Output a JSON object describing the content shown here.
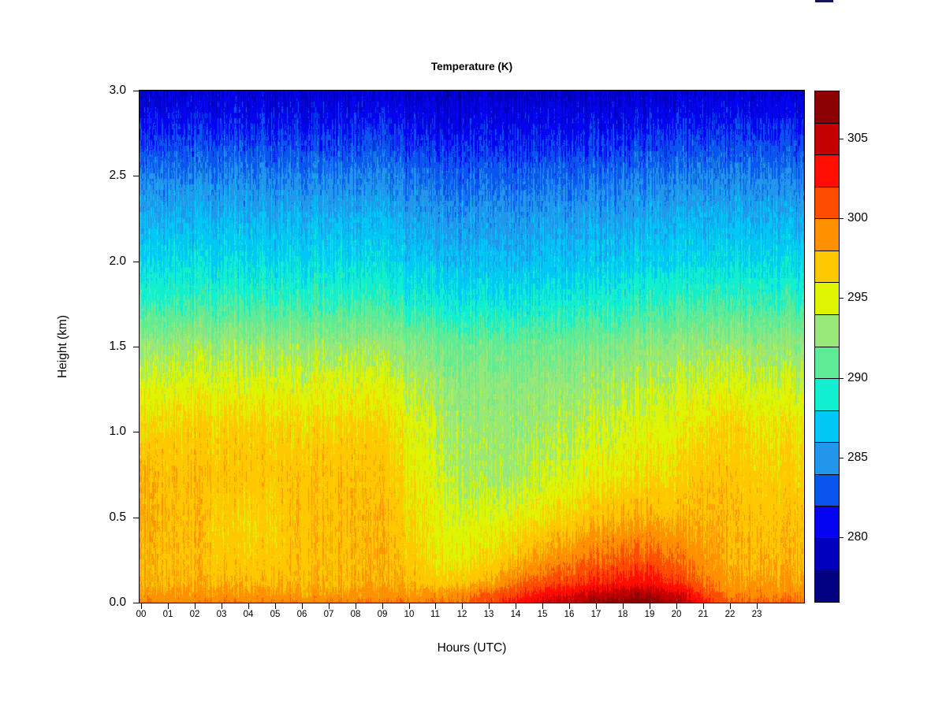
{
  "page": {
    "background": "#FFFFFF",
    "artifact_color": "#15155A"
  },
  "chart_data": {
    "type": "heatmap",
    "title": "Temperature (K)",
    "xlabel": "Hours (UTC)",
    "ylabel": "Height (km)",
    "x_tick_labels": [
      "00",
      "01",
      "02",
      "03",
      "04",
      "05",
      "06",
      "07",
      "08",
      "09",
      "10",
      "11",
      "12",
      "13",
      "14",
      "15",
      "16",
      "17",
      "18",
      "19",
      "20",
      "21",
      "22",
      "23"
    ],
    "y_tick_labels": [
      "0.0",
      "0.5",
      "1.0",
      "1.5",
      "2.0",
      "2.5",
      "3.0"
    ],
    "y_tick_values": [
      0,
      0.5,
      1.0,
      1.5,
      2.0,
      2.5,
      3.0
    ],
    "x_range": [
      0,
      24.8
    ],
    "y_range": [
      0,
      3.0
    ],
    "value_range": [
      276,
      308
    ],
    "grid_on": false,
    "legend_position": "right-colorbar",
    "colorbar": {
      "ticks": [
        280,
        285,
        290,
        295,
        300,
        305
      ],
      "breaks": [
        276,
        278,
        280,
        282,
        284,
        286,
        288,
        290,
        292,
        294,
        296,
        298,
        300,
        302,
        304,
        306,
        308
      ],
      "colors": [
        "#000080",
        "#0000BE",
        "#0404F0",
        "#0A55EE",
        "#2196EB",
        "#00C8F5",
        "#10EFD0",
        "#5FEB96",
        "#97E878",
        "#DEF400",
        "#FFC800",
        "#FF9100",
        "#FF4D00",
        "#FF0D00",
        "#C40000",
        "#8B0000"
      ]
    },
    "grid": {
      "hours": [
        0,
        1,
        2,
        3,
        4,
        5,
        6,
        7,
        8,
        9,
        10,
        11,
        12,
        13,
        14,
        15,
        16,
        17,
        18,
        19,
        20,
        21,
        22,
        23
      ],
      "heights": [
        0,
        0.05,
        0.12,
        0.25,
        0.5,
        0.75,
        1.0,
        1.25,
        1.5,
        1.75,
        2.0,
        2.25,
        2.5,
        2.75,
        3.0
      ],
      "values": [
        [
          299.8,
          299.6,
          299.6,
          299.6,
          299.6,
          299.6,
          299.6,
          299.6,
          299.6,
          299.6,
          299.6,
          299.8,
          300.2,
          301.2,
          302.8,
          304.4,
          305.6,
          306.6,
          307.4,
          307.4,
          306.2,
          302.8,
          300.2,
          300.2
        ],
        [
          298.8,
          298.6,
          298.6,
          298.6,
          298.6,
          298.6,
          298.6,
          298.6,
          298.6,
          298.6,
          298.6,
          298.8,
          299.2,
          300.2,
          301.6,
          302.9,
          303.9,
          304.9,
          305.7,
          305.7,
          304.4,
          301.6,
          299.3,
          299.2
        ],
        [
          298.0,
          297.8,
          297.8,
          297.7,
          297.7,
          297.7,
          297.8,
          297.8,
          297.8,
          297.8,
          297.7,
          296.9,
          297.2,
          297.9,
          299.9,
          300.8,
          301.6,
          302.3,
          302.9,
          302.9,
          301.9,
          300.0,
          298.4,
          298.3
        ],
        [
          297.8,
          297.6,
          297.6,
          296.9,
          296.8,
          297.0,
          297.5,
          297.6,
          297.6,
          297.6,
          296.9,
          295.8,
          295.6,
          296.2,
          297.4,
          298.6,
          299.5,
          300.2,
          300.8,
          300.8,
          300.0,
          298.9,
          297.7,
          297.7
        ],
        [
          298.3,
          297.6,
          297.6,
          296.6,
          296.4,
          296.7,
          297.4,
          297.5,
          297.5,
          297.5,
          296.4,
          295.2,
          294.7,
          294.7,
          295.2,
          295.8,
          296.6,
          297.4,
          297.9,
          297.9,
          297.5,
          297.8,
          297.6,
          297.2
        ],
        [
          298.1,
          297.4,
          297.4,
          297.2,
          297.2,
          297.2,
          297.3,
          297.3,
          297.3,
          297.1,
          295.7,
          294.5,
          293.7,
          293.3,
          293.5,
          294.1,
          294.7,
          295.5,
          295.9,
          296.1,
          296.3,
          297.2,
          297.2,
          296.5
        ],
        [
          296.7,
          296.7,
          296.7,
          296.7,
          296.7,
          296.7,
          296.7,
          296.7,
          296.7,
          296.4,
          295.2,
          294.1,
          293.3,
          292.9,
          292.9,
          293.3,
          293.9,
          294.5,
          294.9,
          295.1,
          295.3,
          296.1,
          296.6,
          295.9
        ],
        [
          295.1,
          295.1,
          295.1,
          295.1,
          295.1,
          295.1,
          295.1,
          295.1,
          295.1,
          294.9,
          294.1,
          293.3,
          292.7,
          292.5,
          292.5,
          292.7,
          293.1,
          293.5,
          293.9,
          294.1,
          294.3,
          294.7,
          295.0,
          294.5
        ],
        [
          293.2,
          293.2,
          293.2,
          293.2,
          293.2,
          293.2,
          293.2,
          293.2,
          293.1,
          292.9,
          292.4,
          291.9,
          291.5,
          291.3,
          291.3,
          291.5,
          291.8,
          292.1,
          292.4,
          292.6,
          292.8,
          293.0,
          293.2,
          292.9
        ],
        [
          290.1,
          290.1,
          290.1,
          290.1,
          290.1,
          290.1,
          290.1,
          290.1,
          290.0,
          289.8,
          289.3,
          288.9,
          288.6,
          288.4,
          288.4,
          288.7,
          289.0,
          289.3,
          289.6,
          289.8,
          290.0,
          290.1,
          290.1,
          289.9
        ],
        [
          287.9,
          287.9,
          287.9,
          287.9,
          287.9,
          287.9,
          287.9,
          287.9,
          287.8,
          287.6,
          287.2,
          286.8,
          286.5,
          286.4,
          286.4,
          286.6,
          286.9,
          287.1,
          287.4,
          287.5,
          287.7,
          287.8,
          287.9,
          287.7
        ],
        [
          286.2,
          286.2,
          286.2,
          286.2,
          286.2,
          286.2,
          286.2,
          286.2,
          286.1,
          285.9,
          285.6,
          285.3,
          285.1,
          285.0,
          285.0,
          285.2,
          285.4,
          285.6,
          285.8,
          285.9,
          286.0,
          286.1,
          286.1,
          286.0
        ],
        [
          284.3,
          284.3,
          284.3,
          284.3,
          284.3,
          284.3,
          284.3,
          284.3,
          284.2,
          284.1,
          283.8,
          283.5,
          283.3,
          283.2,
          283.2,
          283.4,
          283.6,
          283.7,
          283.9,
          284.0,
          284.1,
          284.2,
          284.2,
          284.1
        ],
        [
          282.0,
          282.0,
          282.0,
          282.0,
          282.0,
          282.0,
          282.0,
          282.0,
          281.9,
          281.8,
          281.5,
          281.3,
          281.2,
          281.1,
          281.1,
          281.3,
          281.4,
          281.6,
          281.7,
          281.8,
          281.9,
          281.9,
          282.0,
          281.9
        ],
        [
          279.8,
          279.8,
          279.8,
          279.8,
          279.8,
          279.8,
          279.8,
          279.8,
          279.7,
          279.6,
          279.4,
          279.3,
          279.2,
          279.2,
          279.2,
          279.3,
          279.4,
          279.5,
          279.6,
          279.6,
          279.7,
          279.7,
          279.8,
          279.7
        ]
      ]
    }
  }
}
